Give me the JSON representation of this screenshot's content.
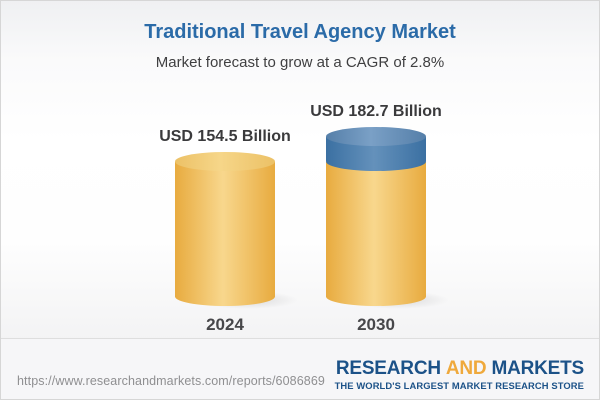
{
  "chart_data": {
    "type": "bar",
    "subtype": "3d-cylinder",
    "categories": [
      "2024",
      "2030"
    ],
    "values": [
      154.5,
      182.7
    ],
    "unit": "USD Billion",
    "value_labels": [
      "USD 154.5 Billion",
      "USD 182.7 Billion"
    ],
    "title": "Traditional Travel Agency Market",
    "subtitle": "Market forecast to grow at a CAGR of 2.8%",
    "cagr_percent": 2.8,
    "xlabel": "",
    "ylabel": "",
    "ylim": [
      0,
      200
    ],
    "grid": false,
    "legend": "none",
    "growth_cap": {
      "from": 154.5,
      "to": 182.7,
      "cap_color": "blue",
      "base_color": "gold"
    }
  },
  "footer": {
    "url": "https://www.researchandmarkets.com/reports/6086869",
    "logo": {
      "research": "RESEARCH",
      "and": "AND",
      "markets": "MARKETS",
      "tagline": "THE WORLD'S LARGEST MARKET RESEARCH STORE"
    }
  },
  "colors": {
    "title_blue": "#2b6ba8",
    "subtitle_gray": "#3f3f41",
    "label_dark": "#3a3a3c",
    "year_dark": "#47474a",
    "url_gray": "#8f8f91",
    "logo_blue": "#1c5288",
    "logo_gold": "#efa93c",
    "bar_gold_edge": "#e8ab3f",
    "bar_gold_light": "#f8d78d",
    "bar_gold_top_edge": "#ecc166",
    "bar_gold_top_light": "#f6d689",
    "cap_blue_edge": "#3b70a2",
    "cap_blue_light": "#6491bb",
    "cap_blue_top_edge": "#557fa9",
    "cap_blue_top_light": "#7aa0c6"
  }
}
